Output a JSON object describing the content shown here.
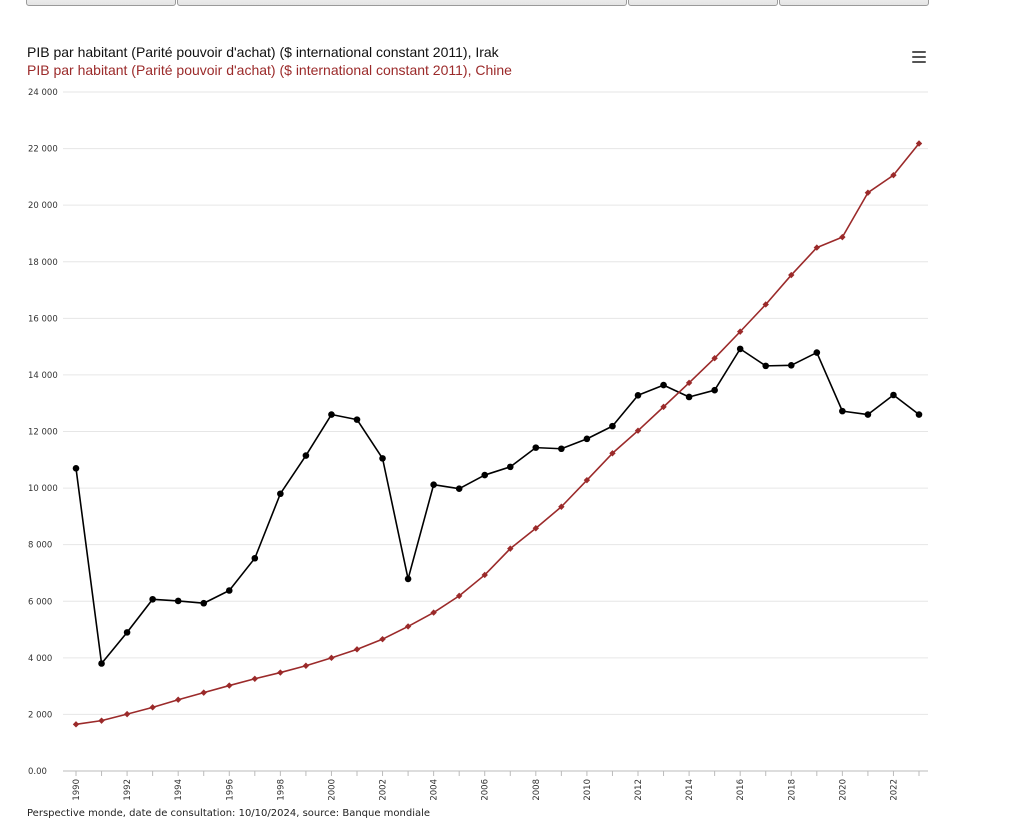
{
  "chart_data": {
    "type": "line",
    "title": "PIB par habitant (Parité pouvoir d'achat) ($ international constant 2011), Irak",
    "subtitle": "PIB par habitant (Parité pouvoir d'achat) ($ international constant 2011), Chine",
    "x": [
      1990,
      1991,
      1992,
      1993,
      1994,
      1995,
      1996,
      1997,
      1998,
      1999,
      2000,
      2001,
      2002,
      2003,
      2004,
      2005,
      2006,
      2007,
      2008,
      2009,
      2010,
      2011,
      2012,
      2013,
      2014,
      2015,
      2016,
      2017,
      2018,
      2019,
      2020,
      2021,
      2022,
      2023
    ],
    "x_tick_labels": [
      "1990",
      "1992",
      "1994",
      "1996",
      "1998",
      "2000",
      "2002",
      "2004",
      "2006",
      "2008",
      "2010",
      "2012",
      "2014",
      "2016",
      "2018",
      "2020",
      "2022"
    ],
    "y_tick_labels": [
      "0.00",
      "2 000",
      "4 000",
      "6 000",
      "8 000",
      "10 000",
      "12 000",
      "14 000",
      "16 000",
      "18 000",
      "20 000",
      "22 000",
      "24 000"
    ],
    "ylim": [
      0,
      24000
    ],
    "xlim": [
      1990,
      2023
    ],
    "grid": "horizontal",
    "series": [
      {
        "name": "Irak",
        "color": "#000000",
        "marker": "circle",
        "values": [
          10700,
          3800,
          4900,
          6070,
          6010,
          5930,
          6380,
          7520,
          9800,
          11150,
          12600,
          12420,
          11050,
          6790,
          10120,
          9980,
          10460,
          10750,
          11430,
          11390,
          11740,
          12190,
          13280,
          13640,
          13220,
          13460,
          14920,
          14320,
          14340,
          14790,
          12720,
          12600,
          13290,
          12600
        ]
      },
      {
        "name": "Chine",
        "color": "#9b2a2a",
        "marker": "diamond",
        "values": [
          1650,
          1780,
          2010,
          2250,
          2520,
          2770,
          3020,
          3260,
          3480,
          3720,
          4000,
          4300,
          4660,
          5110,
          5600,
          6190,
          6930,
          7860,
          8580,
          9340,
          10280,
          11230,
          12030,
          12870,
          13720,
          14590,
          15530,
          16490,
          17530,
          18500,
          18870,
          20440,
          21060,
          22180
        ]
      }
    ]
  },
  "footer": "Perspective monde, date de consultation: 10/10/2024, source: Banque mondiale",
  "menu_icon": "hamburger-menu-icon"
}
